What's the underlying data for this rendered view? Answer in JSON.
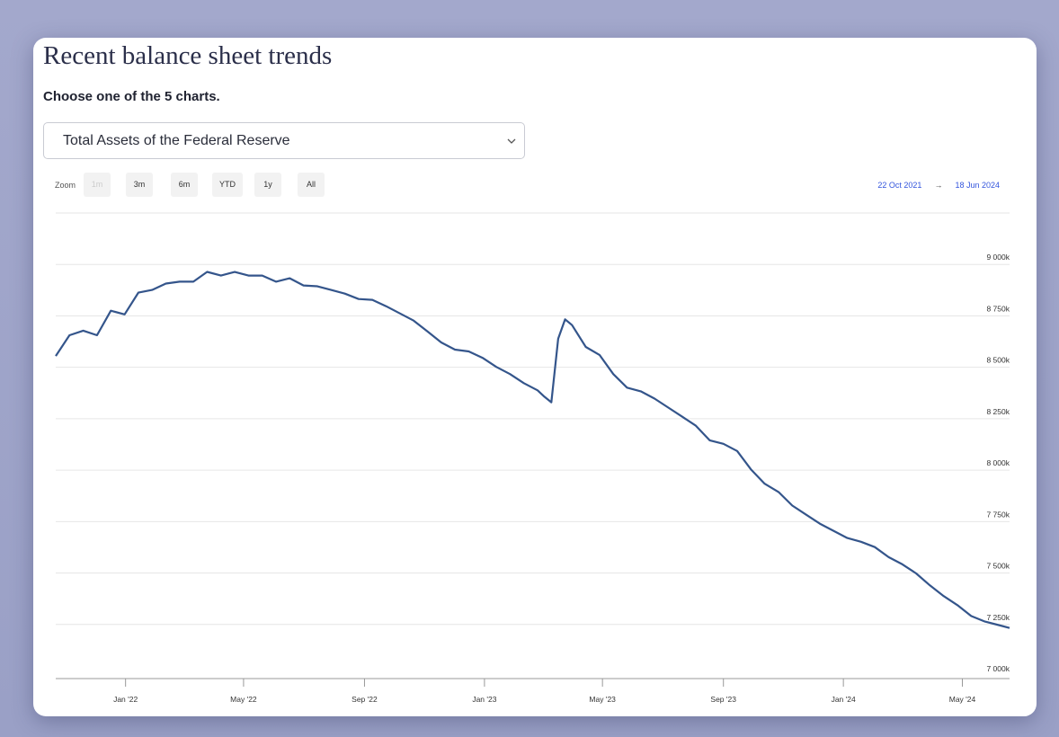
{
  "header": {
    "title": "Recent balance sheet trends",
    "subtitle": "Choose one of the 5 charts."
  },
  "controls": {
    "selected_chart": "Total Assets of the Federal Reserve",
    "zoom_label": "Zoom",
    "zoom_buttons": [
      "1m",
      "3m",
      "6m",
      "YTD",
      "1y",
      "All"
    ],
    "range_from": "22 Oct 2021",
    "range_arrow": "→",
    "range_to": "18 Jun 2024"
  },
  "chart_data": {
    "type": "line",
    "x": [
      "2021-10-22",
      "2021-11-05",
      "2021-11-19",
      "2021-12-03",
      "2021-12-17",
      "2021-12-31",
      "2022-01-14",
      "2022-01-28",
      "2022-02-11",
      "2022-02-25",
      "2022-03-11",
      "2022-03-25",
      "2022-04-08",
      "2022-04-22",
      "2022-05-06",
      "2022-05-20",
      "2022-06-03",
      "2022-06-17",
      "2022-07-01",
      "2022-07-15",
      "2022-07-29",
      "2022-08-12",
      "2022-08-26",
      "2022-09-09",
      "2022-09-23",
      "2022-10-07",
      "2022-10-21",
      "2022-11-04",
      "2022-11-18",
      "2022-12-02",
      "2022-12-16",
      "2022-12-30",
      "2023-01-13",
      "2023-01-27",
      "2023-02-10",
      "2023-02-24",
      "2023-03-03",
      "2023-03-10",
      "2023-03-17",
      "2023-03-24",
      "2023-03-31",
      "2023-04-14",
      "2023-04-28",
      "2023-05-12",
      "2023-05-26",
      "2023-06-09",
      "2023-06-23",
      "2023-07-07",
      "2023-07-21",
      "2023-08-04",
      "2023-08-18",
      "2023-09-01",
      "2023-09-15",
      "2023-09-29",
      "2023-10-13",
      "2023-10-27",
      "2023-11-10",
      "2023-11-24",
      "2023-12-08",
      "2023-12-22",
      "2024-01-05",
      "2024-01-19",
      "2024-02-02",
      "2024-02-16",
      "2024-03-01",
      "2024-03-15",
      "2024-03-29",
      "2024-04-12",
      "2024-04-26",
      "2024-05-10",
      "2024-05-24",
      "2024-06-07",
      "2024-06-18"
    ],
    "series": [
      {
        "color": "#34558b",
        "values": [
          8555,
          8656,
          8678,
          8656,
          8775,
          8757,
          8863,
          8876,
          8907,
          8916,
          8916,
          8964,
          8946,
          8964,
          8946,
          8946,
          8916,
          8933,
          8898,
          8894,
          8876,
          8858,
          8832,
          8828,
          8797,
          8762,
          8727,
          8674,
          8621,
          8586,
          8577,
          8546,
          8502,
          8467,
          8423,
          8388,
          8357,
          8330,
          8639,
          8733,
          8705,
          8599,
          8560,
          8467,
          8401,
          8383,
          8348,
          8304,
          8260,
          8216,
          8145,
          8128,
          8093,
          8004,
          7934,
          7894,
          7828,
          7784,
          7740,
          7705,
          7670,
          7652,
          7626,
          7577,
          7542,
          7498,
          7440,
          7388,
          7344,
          7291,
          7264,
          7247,
          7233
        ]
      }
    ],
    "xlim": [
      "2021-10-22",
      "2024-06-18"
    ],
    "xticks": [
      {
        "value": "2022-01-01",
        "label": "Jan '22"
      },
      {
        "value": "2022-05-01",
        "label": "May '22"
      },
      {
        "value": "2022-09-01",
        "label": "Sep '22"
      },
      {
        "value": "2023-01-01",
        "label": "Jan '23"
      },
      {
        "value": "2023-05-01",
        "label": "May '23"
      },
      {
        "value": "2023-09-01",
        "label": "Sep '23"
      },
      {
        "value": "2024-01-01",
        "label": "Jan '24"
      },
      {
        "value": "2024-05-01",
        "label": "May '24"
      }
    ],
    "ylim": [
      7000,
      9250
    ],
    "yticks": [
      {
        "value": 7000,
        "label": "7 000k"
      },
      {
        "value": 7250,
        "label": "7 250k"
      },
      {
        "value": 7500,
        "label": "7 500k"
      },
      {
        "value": 7750,
        "label": "7 750k"
      },
      {
        "value": 8000,
        "label": "8 000k"
      },
      {
        "value": 8250,
        "label": "8 250k"
      },
      {
        "value": 8500,
        "label": "8 500k"
      },
      {
        "value": 8750,
        "label": "8 750k"
      },
      {
        "value": 9000,
        "label": "9 000k"
      }
    ],
    "grid": true
  }
}
